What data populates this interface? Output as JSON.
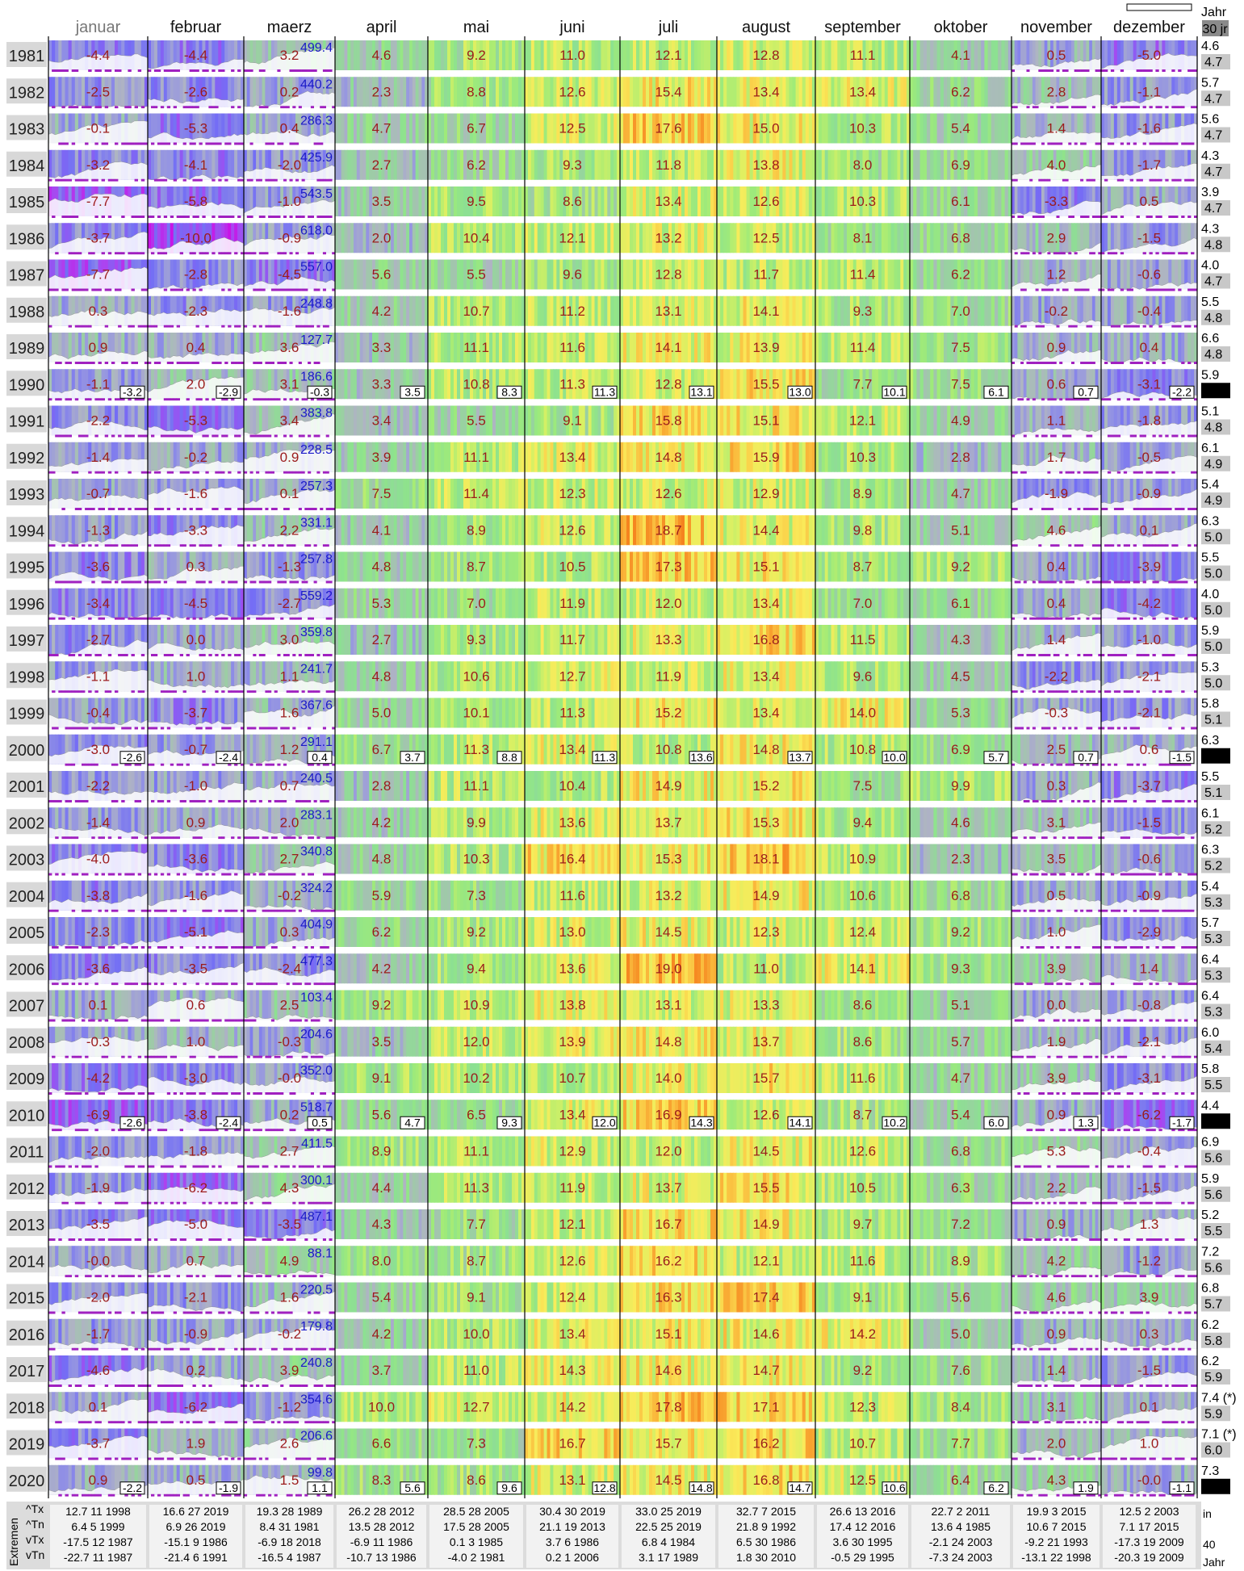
{
  "header": {
    "months": [
      "januar",
      "februar",
      "maerz",
      "april",
      "mai",
      "juni",
      "juli",
      "august",
      "september",
      "oktober",
      "november",
      "dezember"
    ],
    "year_col_label": "Jahr",
    "year_col_badge": "30 jr"
  },
  "chart_data": {
    "type": "heatmap",
    "years": [
      1981,
      1982,
      1983,
      1984,
      1985,
      1986,
      1987,
      1988,
      1989,
      1990,
      1991,
      1992,
      1993,
      1994,
      1995,
      1996,
      1997,
      1998,
      1999,
      2000,
      2001,
      2002,
      2003,
      2004,
      2005,
      2006,
      2007,
      2008,
      2009,
      2010,
      2011,
      2012,
      2013,
      2014,
      2015,
      2016,
      2017,
      2018,
      2019,
      2020
    ],
    "monthly_mean": [
      [
        "-4.4",
        "-4.4",
        "3.2",
        "4.6",
        "9.2",
        "11.0",
        "12.1",
        "12.8",
        "11.1",
        "4.1",
        "0.5",
        "-5.0"
      ],
      [
        "-2.5",
        "-2.6",
        "0.2",
        "2.3",
        "8.8",
        "12.6",
        "15.4",
        "13.4",
        "13.4",
        "6.2",
        "2.8",
        "-1.1"
      ],
      [
        "-0.1",
        "-5.3",
        "0.4",
        "4.7",
        "6.7",
        "12.5",
        "17.6",
        "15.0",
        "10.3",
        "5.4",
        "1.4",
        "-1.6"
      ],
      [
        "-3.2",
        "-4.1",
        "-2.0",
        "2.7",
        "6.2",
        "9.3",
        "11.8",
        "13.8",
        "8.0",
        "6.9",
        "4.0",
        "-1.7"
      ],
      [
        "-7.7",
        "-5.8",
        "-1.0",
        "3.5",
        "9.5",
        "8.6",
        "13.4",
        "12.6",
        "10.3",
        "6.1",
        "-3.3",
        "0.5"
      ],
      [
        "-3.7",
        "-10.0",
        "-0.9",
        "2.0",
        "10.4",
        "12.1",
        "13.2",
        "12.5",
        "8.1",
        "6.8",
        "2.9",
        "-1.5"
      ],
      [
        "-7.7",
        "-2.8",
        "-4.5",
        "5.6",
        "5.5",
        "9.6",
        "12.8",
        "11.7",
        "11.4",
        "6.2",
        "1.2",
        "-0.6"
      ],
      [
        "0.3",
        "-2.3",
        "-1.6",
        "4.2",
        "10.7",
        "11.2",
        "13.1",
        "14.1",
        "9.3",
        "7.0",
        "-0.2",
        "-0.4"
      ],
      [
        "0.9",
        "0.4",
        "3.6",
        "3.3",
        "11.1",
        "11.6",
        "14.1",
        "13.9",
        "11.4",
        "7.5",
        "0.9",
        "0.4"
      ],
      [
        "-1.1",
        "2.0",
        "3.1",
        "3.3",
        "10.8",
        "11.3",
        "12.8",
        "15.5",
        "7.7",
        "7.5",
        "0.6",
        "-3.1"
      ],
      [
        "-2.2",
        "-5.3",
        "3.4",
        "3.4",
        "5.5",
        "9.1",
        "15.8",
        "15.1",
        "12.1",
        "4.9",
        "1.1",
        "-1.8"
      ],
      [
        "-1.4",
        "-0.2",
        "0.9",
        "3.9",
        "11.1",
        "13.4",
        "14.8",
        "15.9",
        "10.3",
        "2.8",
        "1.7",
        "-0.5"
      ],
      [
        "-0.7",
        "-1.6",
        "0.1",
        "7.5",
        "11.4",
        "12.3",
        "12.6",
        "12.9",
        "8.9",
        "4.7",
        "-1.9",
        "-0.9"
      ],
      [
        "-1.3",
        "-3.3",
        "2.2",
        "4.1",
        "8.9",
        "12.6",
        "18.7",
        "14.4",
        "9.8",
        "5.1",
        "4.6",
        "0.1"
      ],
      [
        "-3.6",
        "0.3",
        "-1.3",
        "4.8",
        "8.7",
        "10.5",
        "17.3",
        "15.1",
        "8.7",
        "9.2",
        "0.4",
        "-3.9"
      ],
      [
        "-3.4",
        "-4.5",
        "-2.7",
        "5.3",
        "7.0",
        "11.9",
        "12.0",
        "13.4",
        "7.0",
        "6.1",
        "0.4",
        "-4.2"
      ],
      [
        "-2.7",
        "0.0",
        "3.0",
        "2.7",
        "9.3",
        "11.7",
        "13.3",
        "16.8",
        "11.5",
        "4.3",
        "1.4",
        "-1.0"
      ],
      [
        "-1.1",
        "1.0",
        "1.1",
        "4.8",
        "10.6",
        "12.7",
        "11.9",
        "13.4",
        "9.6",
        "4.5",
        "-2.2",
        "-2.1"
      ],
      [
        "-0.4",
        "-3.7",
        "1.6",
        "5.0",
        "10.1",
        "11.3",
        "15.2",
        "13.4",
        "14.0",
        "5.3",
        "-0.3",
        "-2.1"
      ],
      [
        "-3.0",
        "-0.7",
        "1.2",
        "6.7",
        "11.3",
        "13.4",
        "10.8",
        "14.8",
        "10.8",
        "6.9",
        "2.5",
        "0.6"
      ],
      [
        "-2.2",
        "-1.0",
        "0.7",
        "2.8",
        "11.1",
        "10.4",
        "14.9",
        "15.2",
        "7.5",
        "9.9",
        "0.3",
        "-3.7"
      ],
      [
        "-1.4",
        "0.9",
        "2.0",
        "4.2",
        "9.9",
        "13.6",
        "13.7",
        "15.3",
        "9.4",
        "4.6",
        "3.1",
        "-1.5"
      ],
      [
        "-4.0",
        "-3.6",
        "2.7",
        "4.8",
        "10.3",
        "16.4",
        "15.3",
        "18.1",
        "10.9",
        "2.3",
        "3.5",
        "-0.6"
      ],
      [
        "-3.8",
        "-1.6",
        "-0.2",
        "5.9",
        "7.3",
        "11.6",
        "13.2",
        "14.9",
        "10.6",
        "6.8",
        "0.5",
        "-0.9"
      ],
      [
        "-2.3",
        "-5.1",
        "0.3",
        "6.2",
        "9.2",
        "13.0",
        "14.5",
        "12.3",
        "12.4",
        "9.2",
        "1.0",
        "-2.9"
      ],
      [
        "-3.6",
        "-3.5",
        "-2.4",
        "4.2",
        "9.4",
        "13.6",
        "19.0",
        "11.0",
        "14.1",
        "9.3",
        "3.9",
        "1.4"
      ],
      [
        "0.1",
        "0.6",
        "2.5",
        "9.2",
        "10.9",
        "13.8",
        "13.1",
        "13.3",
        "8.6",
        "5.1",
        "0.0",
        "-0.8"
      ],
      [
        "-0.3",
        "1.0",
        "-0.3",
        "3.5",
        "12.0",
        "13.9",
        "14.8",
        "13.7",
        "8.6",
        "5.7",
        "1.9",
        "-2.1"
      ],
      [
        "-4.2",
        "-3.0",
        "-0.0",
        "9.1",
        "10.2",
        "10.7",
        "14.0",
        "15.7",
        "11.6",
        "4.7",
        "3.9",
        "-3.1"
      ],
      [
        "-6.9",
        "-3.8",
        "0.2",
        "5.6",
        "6.5",
        "13.4",
        "16.9",
        "12.6",
        "8.7",
        "5.4",
        "0.9",
        "-6.2"
      ],
      [
        "-2.0",
        "-1.8",
        "2.7",
        "8.9",
        "11.1",
        "12.9",
        "12.0",
        "14.5",
        "12.6",
        "6.8",
        "5.3",
        "-0.4"
      ],
      [
        "-1.9",
        "-6.2",
        "4.3",
        "4.4",
        "11.3",
        "11.9",
        "13.7",
        "15.5",
        "10.5",
        "6.3",
        "2.2",
        "-1.5"
      ],
      [
        "-3.5",
        "-5.0",
        "-3.5",
        "4.3",
        "7.7",
        "12.1",
        "16.7",
        "14.9",
        "9.7",
        "7.2",
        "0.9",
        "1.3"
      ],
      [
        "-0.0",
        "0.7",
        "4.9",
        "8.0",
        "8.7",
        "12.6",
        "16.2",
        "12.1",
        "11.6",
        "8.9",
        "4.2",
        "-1.2"
      ],
      [
        "-2.0",
        "-2.1",
        "1.6",
        "5.4",
        "9.1",
        "12.4",
        "16.3",
        "17.4",
        "9.1",
        "5.6",
        "4.6",
        "3.9"
      ],
      [
        "-1.7",
        "-0.9",
        "-0.2",
        "4.2",
        "10.0",
        "13.4",
        "15.1",
        "14.6",
        "14.2",
        "5.0",
        "0.9",
        "0.3"
      ],
      [
        "-4.6",
        "0.2",
        "3.9",
        "3.7",
        "11.0",
        "14.3",
        "14.6",
        "14.7",
        "9.2",
        "7.6",
        "1.4",
        "-1.5"
      ],
      [
        "0.1",
        "-6.2",
        "-1.2",
        "10.0",
        "12.7",
        "14.2",
        "17.8",
        "17.1",
        "12.3",
        "8.4",
        "3.1",
        "0.1"
      ],
      [
        "-3.7",
        "1.9",
        "2.6",
        "6.6",
        "7.3",
        "16.7",
        "15.7",
        "16.2",
        "10.7",
        "7.7",
        "2.0",
        "1.0"
      ],
      [
        "0.9",
        "0.5",
        "1.5",
        "8.3",
        "8.6",
        "13.1",
        "14.5",
        "16.8",
        "12.5",
        "6.4",
        "4.3",
        "-0.0"
      ]
    ],
    "snow_sum": [
      "499.4",
      "440.2",
      "286.3",
      "425.9",
      "543.5",
      "618.0",
      "557.0",
      "248.8",
      "127.7",
      "186.6",
      "383.8",
      "228.5",
      "257.3",
      "331.1",
      "257.8",
      "559.2",
      "359.8",
      "241.7",
      "367.6",
      "291.1",
      "240.5",
      "283.1",
      "340.8",
      "324.2",
      "404.9",
      "477.3",
      "103.4",
      "204.6",
      "352.0",
      "518.7",
      "411.5",
      "300.1",
      "487.1",
      "88.1",
      "220.5",
      "179.8",
      "240.8",
      "354.6",
      "206.6",
      "99.8"
    ],
    "annual_mean": [
      "4.6",
      "5.7",
      "5.6",
      "4.3",
      "3.9",
      "4.3",
      "4.0",
      "5.5",
      "6.6",
      "5.9",
      "5.1",
      "6.1",
      "5.4",
      "6.3",
      "5.5",
      "4.0",
      "5.9",
      "5.3",
      "5.8",
      "6.3",
      "5.5",
      "6.1",
      "6.3",
      "5.4",
      "5.7",
      "6.4",
      "6.4",
      "6.0",
      "5.8",
      "4.4",
      "6.9",
      "5.9",
      "5.2",
      "7.2",
      "6.8",
      "6.2",
      "6.2",
      "7.4 (*)",
      "7.1 (*)",
      "7.3"
    ],
    "running_30yr_mean": [
      "4.7",
      "4.7",
      "4.7",
      "4.7",
      "4.7",
      "4.8",
      "4.7",
      "4.8",
      "4.8",
      "4.8",
      "4.8",
      "4.9",
      "4.9",
      "5.0",
      "5.0",
      "5.0",
      "5.0",
      "5.0",
      "5.1",
      "5.1",
      "5.1",
      "5.2",
      "5.2",
      "5.3",
      "5.3",
      "5.3",
      "5.3",
      "5.4",
      "5.5",
      "5.5",
      "5.6",
      "5.6",
      "5.5",
      "5.6",
      "5.7",
      "5.8",
      "5.9",
      "5.9",
      "6.0",
      "6.0"
    ],
    "decade_averages": {
      "1990": {
        "months": [
          "-3.2",
          "-2.9",
          "-0.3",
          "3.5",
          "8.3",
          "11.3",
          "13.1",
          "13.0",
          "10.1",
          "6.1",
          "0.7",
          "-2.2"
        ],
        "year": "4.8"
      },
      "2000": {
        "months": [
          "-2.6",
          "-2.4",
          "0.4",
          "3.7",
          "8.8",
          "11.3",
          "13.6",
          "13.7",
          "10.0",
          "5.7",
          "0.7",
          "-1.5"
        ],
        "year": "5.1"
      },
      "2010": {
        "months": [
          "-2.6",
          "-2.4",
          "0.5",
          "4.7",
          "9.3",
          "12.0",
          "14.3",
          "14.1",
          "10.2",
          "6.0",
          "1.3",
          "-1.7"
        ],
        "year": "5.5"
      },
      "2020": {
        "months": [
          "-2.2",
          "-1.9",
          "1.1",
          "5.6",
          "9.6",
          "12.8",
          "14.8",
          "14.7",
          "10.6",
          "6.2",
          "1.9",
          "-1.1"
        ],
        "year": "6.0"
      }
    },
    "extremes": {
      "labels": [
        "Extremen",
        "^Tx",
        "^Tn",
        "vTx",
        "vTn"
      ],
      "rows": [
        [
          "12.7 11 1998",
          "16.6 27 2019",
          "19.3 28 1989",
          "26.2 28 2012",
          "28.5 28 2005",
          "30.4 30 2019",
          "33.0 25 2019",
          "32.7 7 2015",
          "26.6 13 2016",
          "22.7 2 2011",
          "19.9 3 2015",
          "12.5 2 2003"
        ],
        [
          "6.4 5 1999",
          "6.9 26 2019",
          "8.4 31 1981",
          "13.5 28 2012",
          "17.5 28 2005",
          "21.1 19 2013",
          "22.5 25 2019",
          "21.8 9 1992",
          "17.4 12 2016",
          "13.6 4 1985",
          "10.6 7 2015",
          "7.1 17 2015"
        ],
        [
          "-17.5 12 1987",
          "-15.1 9 1986",
          "-6.9 18 2018",
          "-6.9 11 1986",
          "0.1 3 1985",
          "3.7 6 1986",
          "6.8 4 1984",
          "6.5 30 1986",
          "3.6 30 1995",
          "-2.1 24 2003",
          "-9.2 21 1993",
          "-17.3 19 2009"
        ],
        [
          "-22.7 11 1987",
          "-21.4 6 1991",
          "-16.5 4 1987",
          "-10.7 13 1986",
          "-4.0 2 1981",
          "0.2 1 2006",
          "3.1 17 1989",
          "1.8 30 2010",
          "-0.5 29 1995",
          "-7.3 24 2003",
          "-13.1 22 1998",
          "-20.3 19 2009"
        ]
      ],
      "right_top": "in",
      "right_mid": "40",
      "right_bot": "Jahr"
    }
  }
}
